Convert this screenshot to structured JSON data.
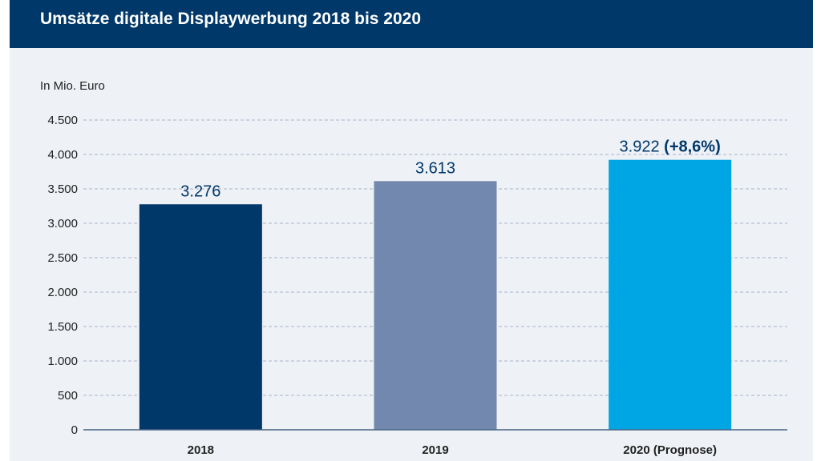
{
  "header": {
    "title": "Umsätze digitale Displaywerbung 2018 bis 2020"
  },
  "chart_data": {
    "type": "bar",
    "title": "Umsätze digitale Displaywerbung 2018 bis 2020",
    "unit_label": "In Mio. Euro",
    "categories": [
      "2018",
      "2019",
      "2020 (Prognose)"
    ],
    "values": [
      3276,
      3613,
      3922
    ],
    "value_labels": [
      "3.276",
      "3.613",
      "3.922"
    ],
    "value_label_suffixes": [
      "",
      "",
      " (+8,6%)"
    ],
    "bar_colors": [
      "#00386a",
      "#7388ae",
      "#00a5e3"
    ],
    "ylim": [
      0,
      4500
    ],
    "yticks": [
      0,
      500,
      1000,
      1500,
      2000,
      2500,
      3000,
      3500,
      4000,
      4500
    ],
    "ytick_labels": [
      "0",
      "500",
      "1.000",
      "1.500",
      "2.000",
      "2.500",
      "3.000",
      "3.500",
      "4.000",
      "4.500"
    ],
    "grid": true,
    "legend": "none"
  }
}
